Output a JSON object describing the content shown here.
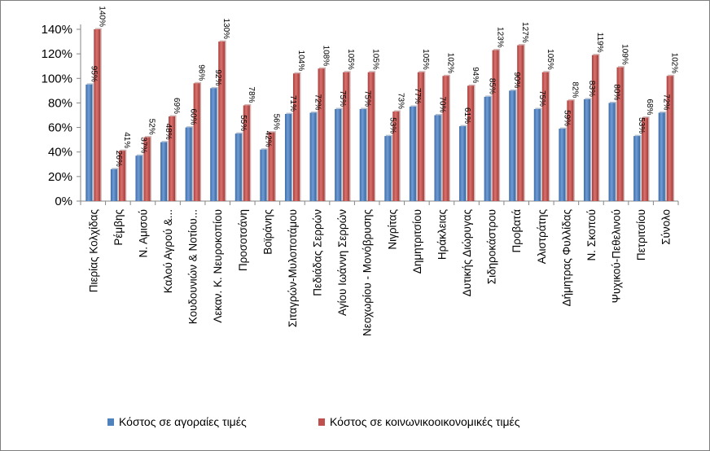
{
  "chart_data": {
    "type": "bar",
    "categories": [
      "Πιερίας Κολχίδας",
      "Ρέμβης",
      "Ν. Αμισού",
      "Καλού Αγρού &...",
      "Κουδουνιών & Νοτίου...",
      "Λεκαν. Κ. Νευροκοπίου",
      "Προσοτσάνη",
      "Βοϊράνης",
      "Σιταγρών-Μυλοποτάμου",
      "Πεδιάδας Σερρών",
      "Αγίου Ιωάννη Σερρών",
      "Νεοχωρίου - Μονόβρυσης",
      "Νιγρίτας",
      "Δημητριτσίου",
      "Ηράκλειας",
      "Δυτικής Διώρυγας",
      "Σιδηροκάστρου",
      "Προβατά",
      "Αλιστράτης",
      "Δήμητρας Φυλλίδας",
      "Ν. Σκοπού",
      "Ψυχικού-Πεθελινού",
      "Πετριτσίου",
      "Σύνολο"
    ],
    "series": [
      {
        "name": "Κόστος σε αγοραίες τιμές",
        "color": "#4f81bd",
        "values": [
          95,
          26,
          37,
          48,
          60,
          92,
          55,
          42,
          71,
          72,
          75,
          75,
          53,
          77,
          70,
          61,
          85,
          90,
          75,
          59,
          83,
          80,
          53,
          72
        ],
        "labels": [
          "95%",
          "26%",
          "37%",
          "48%",
          "60%",
          "92%",
          "55%",
          "42%",
          "71%",
          "72%",
          "75%",
          "75%",
          "53%",
          "77%",
          "70%",
          "61%",
          "85%",
          "90%",
          "75%",
          "59%",
          "83%",
          "80%",
          "53%",
          "72%"
        ]
      },
      {
        "name": "Κόστος σε κοινωνικοοικονομικές τιμές",
        "color": "#c0504d",
        "values": [
          140,
          41,
          52,
          69,
          96,
          130,
          78,
          56,
          104,
          108,
          105,
          105,
          73,
          105,
          102,
          94,
          123,
          127,
          105,
          82,
          119,
          109,
          68,
          102
        ],
        "labels": [
          "140%",
          "41%",
          "52%",
          "69%",
          "96%",
          "130%",
          "78%",
          "56%",
          "104%",
          "108%",
          "105%",
          "105%",
          "73%",
          "105%",
          "102%",
          "94%",
          "123%",
          "127%",
          "105%",
          "82%",
          "119%",
          "109%",
          "68%",
          "102%"
        ]
      }
    ],
    "y_ticks": [
      "0%",
      "20%",
      "40%",
      "60%",
      "80%",
      "100%",
      "120%",
      "140%"
    ],
    "ylim": [
      0,
      140
    ],
    "y_unit": "percent",
    "legend_position": "bottom",
    "grid": false
  }
}
